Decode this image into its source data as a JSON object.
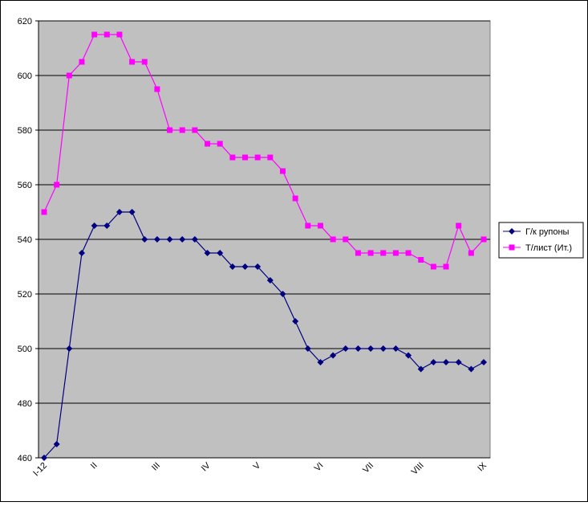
{
  "chart_data": {
    "type": "line",
    "categories": [
      "I-12",
      null,
      null,
      null,
      "II",
      null,
      null,
      null,
      null,
      "III",
      null,
      null,
      null,
      "IV",
      null,
      null,
      null,
      "V",
      null,
      null,
      null,
      null,
      "VI",
      null,
      null,
      null,
      "VII",
      null,
      null,
      null,
      "VIII",
      null,
      null,
      null,
      null,
      "IX"
    ],
    "series": [
      {
        "name": "Г/к рупоны",
        "color": "#000080",
        "marker": "diamond",
        "values": [
          460,
          465,
          500,
          535,
          545,
          545,
          550,
          550,
          540,
          540,
          540,
          540,
          540,
          535,
          535,
          530,
          530,
          530,
          525,
          520,
          510,
          500,
          495,
          497.5,
          500,
          500,
          500,
          500,
          500,
          497.5,
          492.5,
          495,
          495,
          495,
          492.5,
          495
        ]
      },
      {
        "name": "Т/лист (Ит.)",
        "color": "#ff00ff",
        "marker": "square",
        "values": [
          550,
          560,
          600,
          605,
          615,
          615,
          615,
          605,
          605,
          595,
          580,
          580,
          580,
          575,
          575,
          570,
          570,
          570,
          570,
          565,
          555,
          545,
          545,
          540,
          540,
          535,
          535,
          535,
          535,
          535,
          532.5,
          530,
          530,
          545,
          535,
          540
        ]
      }
    ],
    "ylim": [
      460,
      620
    ],
    "yticks": [
      460,
      480,
      500,
      520,
      540,
      560,
      580,
      600,
      620
    ],
    "grid": true,
    "legend": "right",
    "plot_background": "#c0c0c0"
  }
}
